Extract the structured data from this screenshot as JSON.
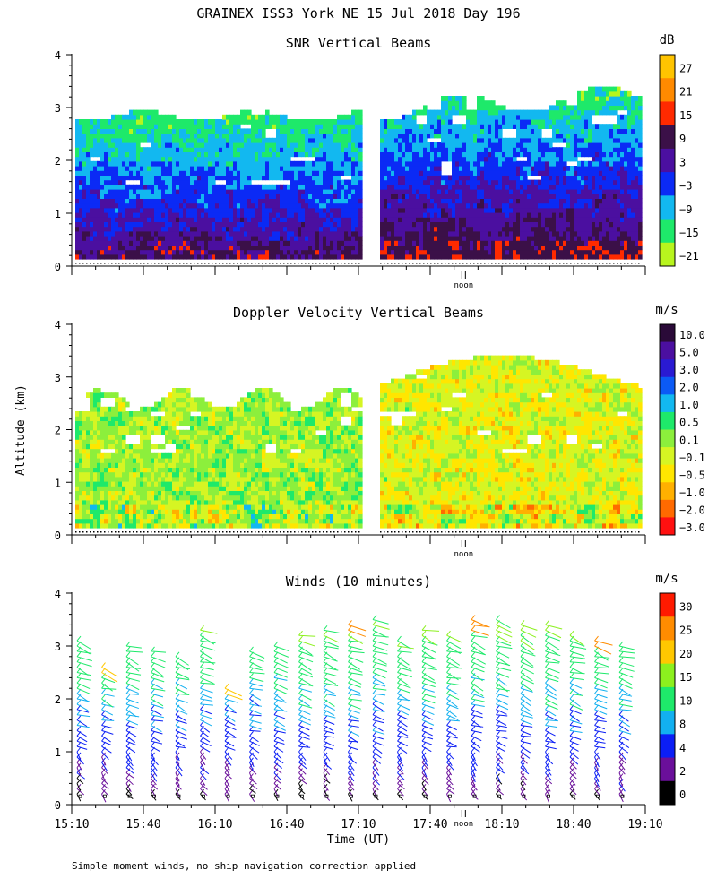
{
  "title": "GRAINEX ISS3 York NE  15 Jul 2018 Day 196",
  "footnote": "Simple moment winds, no ship navigation correction applied",
  "y_axis_label": "Altitude (km)",
  "x_axis_label": "Time (UT)",
  "noon_label": "noon",
  "chart_data": [
    {
      "type": "heatmap",
      "title": "SNR Vertical Beams",
      "colorbar_unit": "dB",
      "colorbar_labels": [
        "27",
        "21",
        "15",
        "9",
        "3",
        "−3",
        "−9",
        "−15",
        "−21"
      ],
      "colorbar_colors": [
        "#ffc400",
        "#ff8a00",
        "#ff2a00",
        "#3b1048",
        "#4b0fa0",
        "#0b2af5",
        "#12b8f0",
        "#1ee96a",
        "#b8f51e"
      ],
      "y_ticks": [
        "0",
        "1",
        "2",
        "3",
        "4"
      ],
      "ylim": [
        0,
        4
      ],
      "x_range_hours": [
        15.1667,
        19.1667
      ],
      "data_gap_hours": [
        17.2,
        17.3
      ]
    },
    {
      "type": "heatmap",
      "title": "Doppler Velocity Vertical Beams",
      "colorbar_unit": "m/s",
      "colorbar_labels": [
        "10.0",
        "5.0",
        "3.0",
        "2.0",
        "1.0",
        "0.5",
        "0.1",
        "−0.1",
        "−0.5",
        "−1.0",
        "−2.0",
        "−3.0"
      ],
      "colorbar_colors": [
        "#2a0a38",
        "#4b0fa0",
        "#2a1ad2",
        "#0b5af5",
        "#12b8f0",
        "#1ee96a",
        "#8cef3c",
        "#d6f523",
        "#ffe600",
        "#ffb000",
        "#ff6a00",
        "#ff1010"
      ],
      "y_ticks": [
        "0",
        "1",
        "2",
        "3",
        "4"
      ],
      "ylim": [
        0,
        4
      ],
      "x_range_hours": [
        15.1667,
        19.1667
      ],
      "data_gap_hours": [
        17.2,
        17.3
      ]
    },
    {
      "type": "scatter",
      "title": "Winds (10 minutes)",
      "colorbar_unit": "m/s",
      "colorbar_labels": [
        "30",
        "25",
        "20",
        "15",
        "10",
        "8",
        "4",
        "2",
        "0"
      ],
      "colorbar_colors": [
        "#ff1a00",
        "#ff8c00",
        "#ffc800",
        "#8cf01e",
        "#1ee96a",
        "#12b0f0",
        "#0b1ef5",
        "#6a0f9a",
        "#000000"
      ],
      "y_ticks": [
        "0",
        "1",
        "2",
        "3",
        "4"
      ],
      "ylim": [
        0,
        4
      ],
      "x_ticks": [
        "15:10",
        "15:40",
        "16:10",
        "16:40",
        "17:10",
        "17:40",
        "18:10",
        "18:40",
        "19:10"
      ],
      "profile_tops_km": [
        3.2,
        2.7,
        3.05,
        3.0,
        2.9,
        3.4,
        2.3,
        3.0,
        3.1,
        3.25,
        3.35,
        3.5,
        3.55,
        3.2,
        3.4,
        3.3,
        3.55,
        3.55,
        3.5,
        3.45,
        3.3,
        3.2,
        3.1
      ],
      "max_speed_ms": 34
    }
  ]
}
